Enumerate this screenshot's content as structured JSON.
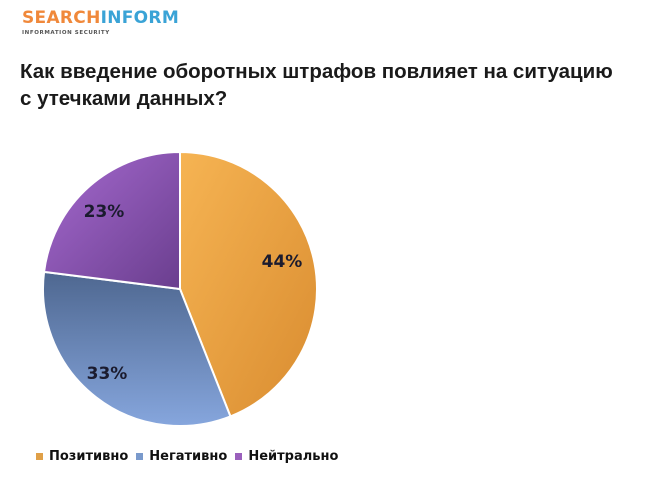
{
  "logo": {
    "part1": "SEARCH",
    "part2": "INFORM",
    "subtitle": "INFORMATION SECURITY"
  },
  "title": {
    "line1": "Как введение оборотных штрафов повлияет на ситуацию",
    "line2": "с утечками данных?"
  },
  "chart_data": {
    "type": "pie",
    "title": "Как введение оборотных штрафов повлияет на ситуацию с утечками данных?",
    "categories": [
      "Позитивно",
      "Негативно",
      "Нейтрально"
    ],
    "values": [
      44,
      33,
      23
    ],
    "labels": [
      "44%",
      "33%",
      "23%"
    ],
    "colors": [
      "#e8a040",
      "#6f8cc4",
      "#8a58b4"
    ],
    "legend_position": "bottom-left",
    "start_angle": "12 o'clock, clockwise"
  },
  "legend": {
    "items": [
      {
        "label": "Позитивно",
        "color": "#e0a048"
      },
      {
        "label": "Негативно",
        "color": "#7a9acc"
      },
      {
        "label": "Нейтрально",
        "color": "#9a60bc"
      }
    ]
  }
}
